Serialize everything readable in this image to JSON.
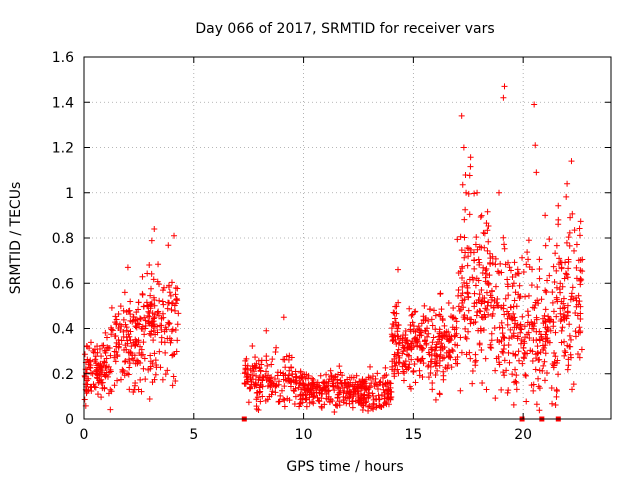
{
  "chart_data": {
    "type": "scatter",
    "title": "Day 066 of 2017, SRMTID for receiver vars",
    "xlabel": "GPS time / hours",
    "ylabel": "SRMTID / TECUs",
    "xlim": [
      0,
      24
    ],
    "ylim": [
      0,
      1.6
    ],
    "xticks": [
      0,
      5,
      10,
      15,
      20
    ],
    "xtick_labels": [
      "0",
      "5",
      "10",
      "15",
      "20"
    ],
    "yticks": [
      0,
      0.2,
      0.4,
      0.6,
      0.8,
      1.0,
      1.2,
      1.4,
      1.6
    ],
    "ytick_labels": [
      "0",
      "0.2",
      "0.4",
      "0.6",
      "0.8",
      "1",
      "1.2",
      "1.4",
      "1.6"
    ],
    "grid": true,
    "marker": "+",
    "series_color": "#ff0000",
    "segments": [
      {
        "x_start": 0.0,
        "x_end": 1.2,
        "base": 0.22,
        "spread": 0.1,
        "count": 110
      },
      {
        "x_start": 1.2,
        "x_end": 2.6,
        "base": 0.35,
        "spread": 0.15,
        "count": 120
      },
      {
        "x_start": 2.6,
        "x_end": 4.3,
        "base": 0.42,
        "spread": 0.18,
        "count": 150
      },
      {
        "x_start": 7.3,
        "x_end": 9.5,
        "base": 0.18,
        "spread": 0.08,
        "count": 150
      },
      {
        "x_start": 9.5,
        "x_end": 12.0,
        "base": 0.13,
        "spread": 0.06,
        "count": 190
      },
      {
        "x_start": 12.0,
        "x_end": 14.0,
        "base": 0.12,
        "spread": 0.06,
        "count": 170
      },
      {
        "x_start": 14.0,
        "x_end": 15.5,
        "base": 0.32,
        "spread": 0.13,
        "count": 150
      },
      {
        "x_start": 15.5,
        "x_end": 17.0,
        "base": 0.33,
        "spread": 0.14,
        "count": 130
      },
      {
        "x_start": 17.0,
        "x_end": 18.5,
        "base": 0.6,
        "spread": 0.28,
        "count": 160
      },
      {
        "x_start": 18.5,
        "x_end": 20.0,
        "base": 0.45,
        "spread": 0.25,
        "count": 140
      },
      {
        "x_start": 20.0,
        "x_end": 21.5,
        "base": 0.4,
        "spread": 0.25,
        "count": 140
      },
      {
        "x_start": 21.5,
        "x_end": 22.7,
        "base": 0.5,
        "spread": 0.25,
        "count": 120
      }
    ],
    "peaks": [
      {
        "x": 17.2,
        "y": 1.34
      },
      {
        "x": 17.3,
        "y": 1.2
      },
      {
        "x": 17.4,
        "y": 1.0
      },
      {
        "x": 17.9,
        "y": 1.0
      },
      {
        "x": 19.15,
        "y": 1.47
      },
      {
        "x": 19.1,
        "y": 1.42
      },
      {
        "x": 20.5,
        "y": 1.39
      },
      {
        "x": 20.55,
        "y": 1.21
      },
      {
        "x": 20.6,
        "y": 1.09
      },
      {
        "x": 22.2,
        "y": 1.14
      },
      {
        "x": 22.0,
        "y": 1.04
      },
      {
        "x": 18.9,
        "y": 1.0
      },
      {
        "x": 3.2,
        "y": 0.84
      },
      {
        "x": 4.1,
        "y": 0.81
      },
      {
        "x": 2.0,
        "y": 0.67
      },
      {
        "x": 9.1,
        "y": 0.45
      },
      {
        "x": 8.3,
        "y": 0.39
      },
      {
        "x": 14.3,
        "y": 0.66
      },
      {
        "x": 15.5,
        "y": 0.5
      },
      {
        "x": 21.0,
        "y": 0.9
      },
      {
        "x": 21.6,
        "y": 0.88
      }
    ],
    "zero_markers": [
      7.3,
      19.95,
      20.85,
      21.6
    ]
  }
}
